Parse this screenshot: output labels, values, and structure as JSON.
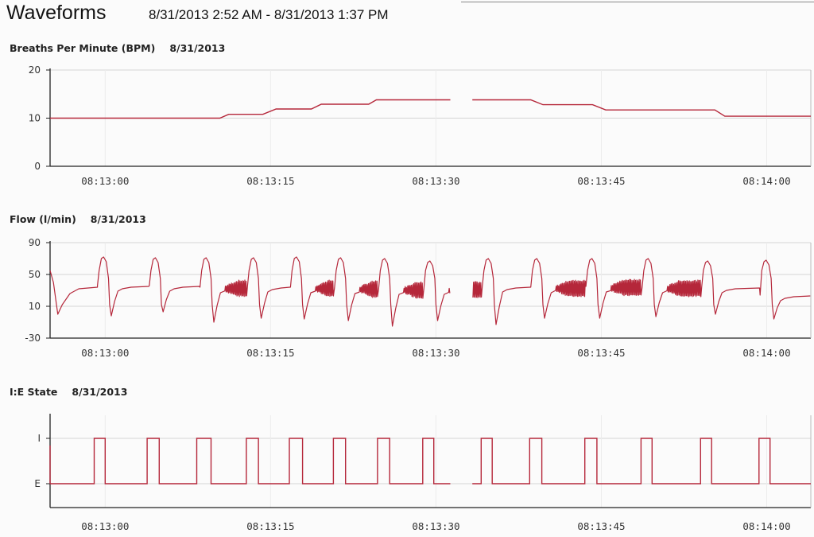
{
  "header": {
    "title": "Waveforms",
    "range": "8/31/2013 2:52 AM - 8/31/2013 1:37 PM"
  },
  "colors": {
    "trace": "#b5273a",
    "grid": "#d4d4d4",
    "axis": "#222222"
  },
  "chart_data": [
    {
      "type": "line",
      "title": "Breaths Per Minute (BPM)",
      "date": "8/31/2013",
      "xlabel": "",
      "ylabel": "",
      "x_ticks": [
        "08:13:00",
        "08:13:15",
        "08:13:30",
        "08:13:45",
        "08:14:00"
      ],
      "x_range": [
        "08:12:55",
        "08:14:04"
      ],
      "y_ticks": [
        "0",
        "10",
        "20"
      ],
      "ylim": [
        0,
        20
      ],
      "grid": true,
      "series": [
        {
          "segments": [
            [
              [
                "08:12:55",
                10
              ],
              [
                "08:13:00",
                10
              ],
              [
                "08:13:05",
                10
              ],
              [
                "08:13:10.4",
                10
              ],
              [
                "08:13:11.2",
                10.8
              ],
              [
                "08:13:14.3",
                10.8
              ],
              [
                "08:13:15.5",
                11.9
              ],
              [
                "08:13:18.7",
                11.9
              ],
              [
                "08:13:19.6",
                12.9
              ],
              [
                "08:13:23.9",
                12.9
              ],
              [
                "08:13:24.6",
                13.8
              ],
              [
                "08:13:31.3",
                13.8
              ]
            ],
            [
              [
                "08:13:33.3",
                13.8
              ],
              [
                "08:13:38.6",
                13.8
              ],
              [
                "08:13:39.7",
                12.8
              ],
              [
                "08:13:44.2",
                12.8
              ],
              [
                "08:13:45.4",
                11.7
              ],
              [
                "08:13:55.3",
                11.7
              ],
              [
                "08:13:56.2",
                10.4
              ],
              [
                "08:14:04",
                10.4
              ]
            ]
          ]
        }
      ]
    },
    {
      "type": "line",
      "title": "Flow (l/min)",
      "date": "8/31/2013",
      "xlabel": "",
      "ylabel": "",
      "x_ticks": [
        "08:13:00",
        "08:13:15",
        "08:13:30",
        "08:13:45",
        "08:14:00"
      ],
      "x_range": [
        "08:12:55",
        "08:14:04"
      ],
      "y_ticks": [
        "-30",
        "10",
        "50",
        "90"
      ],
      "ylim": [
        -30,
        90
      ],
      "grid": true,
      "series": [
        {
          "gap": [
            "08:13:31.3",
            "08:13:33.3"
          ],
          "breaths": [
            {
              "start": "08:12:59.3",
              "peak": 72,
              "trough": -2,
              "plateau": 34,
              "noisy": false
            },
            {
              "start": "08:13:04.0",
              "peak": 71,
              "trough": 3,
              "plateau": 34,
              "noisy": false
            },
            {
              "start": "08:13:08.6",
              "peak": 71,
              "trough": -10,
              "plateau": 32,
              "noisy": true
            },
            {
              "start": "08:13:12.9",
              "peak": 71,
              "trough": -5,
              "plateau": 33,
              "noisy": false
            },
            {
              "start": "08:13:16.8",
              "peak": 72,
              "trough": -6,
              "plateau": 32,
              "noisy": true
            },
            {
              "start": "08:13:20.8",
              "peak": 71,
              "trough": -8,
              "plateau": 31,
              "noisy": true
            },
            {
              "start": "08:13:24.8",
              "peak": 70,
              "trough": -15,
              "plateau": 30,
              "noisy": true
            },
            {
              "start": "08:13:28.9",
              "peak": 67,
              "trough": -8,
              "plateau": 30,
              "noisy": true
            },
            {
              "start": "08:13:34.2",
              "peak": 70,
              "trough": -13,
              "plateau": 33,
              "noisy": false
            },
            {
              "start": "08:13:38.6",
              "peak": 70,
              "trough": -5,
              "plateau": 32,
              "noisy": true
            },
            {
              "start": "08:13:43.6",
              "peak": 70,
              "trough": -5,
              "plateau": 33,
              "noisy": true
            },
            {
              "start": "08:13:48.7",
              "peak": 70,
              "trough": -3,
              "plateau": 32,
              "noisy": true
            },
            {
              "start": "08:13:54.1",
              "peak": 67,
              "trough": 0,
              "plateau": 32,
              "noisy": false
            },
            {
              "start": "08:13:59.4",
              "peak": 68,
              "trough": -6,
              "plateau": 22,
              "noisy": false
            }
          ]
        }
      ]
    },
    {
      "type": "line",
      "title": "I:E State",
      "date": "8/31/2013",
      "xlabel": "",
      "ylabel": "",
      "x_ticks": [
        "08:13:00",
        "08:13:15",
        "08:13:30",
        "08:13:45",
        "08:14:00"
      ],
      "x_range": [
        "08:12:55",
        "08:14:04"
      ],
      "y_ticks": [
        "E",
        "I"
      ],
      "grid": true,
      "series": [
        {
          "gap": [
            "08:13:31.3",
            "08:13:33.3"
          ],
          "inspiration_intervals": [
            [
              "08:12:59.0",
              "08:13:00.0"
            ],
            [
              "08:13:03.8",
              "08:13:04.9"
            ],
            [
              "08:13:08.3",
              "08:13:09.6"
            ],
            [
              "08:13:12.8",
              "08:13:13.9"
            ],
            [
              "08:13:16.7",
              "08:13:17.9"
            ],
            [
              "08:13:20.7",
              "08:13:21.8"
            ],
            [
              "08:13:24.7",
              "08:13:25.8"
            ],
            [
              "08:13:28.8",
              "08:13:29.8"
            ],
            [
              "08:13:34.1",
              "08:13:35.1"
            ],
            [
              "08:13:38.5",
              "08:13:39.6"
            ],
            [
              "08:13:43.5",
              "08:13:44.6"
            ],
            [
              "08:13:48.6",
              "08:13:49.6"
            ],
            [
              "08:13:54.0",
              "08:13:55.0"
            ],
            [
              "08:13:59.3",
              "08:14:00.3"
            ]
          ]
        }
      ]
    }
  ]
}
